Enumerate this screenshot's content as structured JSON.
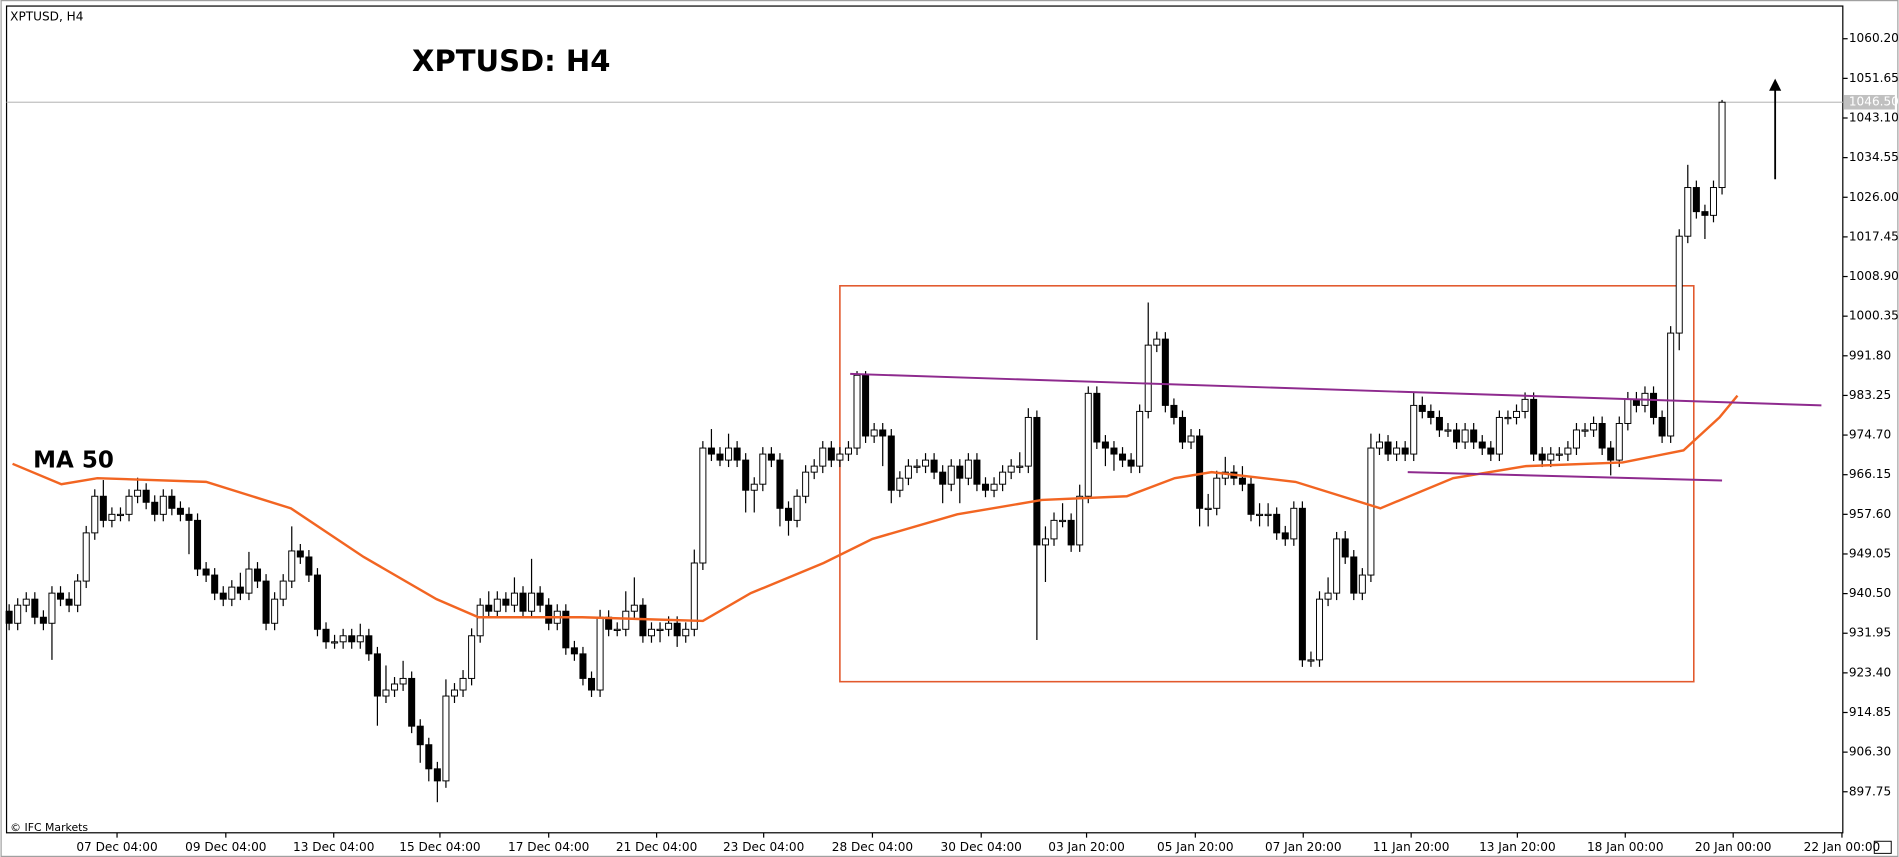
{
  "chart_data": {
    "type": "candlestick",
    "window_label": "XPTUSD, H4",
    "title": "XPTUSD: H4",
    "ma_label": "MA 50",
    "copyright": "© IFC Markets",
    "open": [
      936.7,
      934.1,
      938.0,
      939.3,
      935.4,
      934.1,
      940.6,
      939.3,
      938.0,
      943.2,
      953.6,
      961.5,
      956.3,
      957.6,
      957.6,
      961.5,
      962.8,
      960.2,
      957.6,
      961.5,
      958.9,
      957.6,
      956.3,
      945.8,
      944.5,
      940.6,
      939.3,
      941.9,
      940.6,
      945.8,
      943.2,
      934.1,
      939.3,
      943.2,
      949.7,
      948.4,
      944.5,
      932.8,
      930.1,
      930.1,
      931.4,
      930.1,
      931.4,
      927.5,
      918.4,
      919.7,
      921.0,
      922.2,
      911.9,
      907.9,
      902.7,
      900.1,
      918.4,
      919.7,
      922.2,
      931.4,
      938.0,
      936.7,
      939.3,
      938.0,
      940.6,
      936.7,
      940.6,
      938.0,
      934.1,
      936.7,
      928.8,
      927.5,
      922.2,
      919.7,
      935.4,
      932.8,
      932.8,
      936.7,
      938.0,
      931.4,
      932.8,
      932.8,
      934.1,
      931.4,
      932.8,
      947.1,
      971.9,
      970.6,
      969.3,
      971.9,
      969.3,
      962.8,
      964.1,
      970.6,
      969.3,
      958.9,
      956.3,
      961.5,
      966.7,
      968.0,
      971.9,
      969.3,
      970.6,
      971.9,
      987.6,
      974.5,
      975.8,
      974.5,
      962.8,
      965.4,
      968.0,
      968.0,
      969.3,
      966.7,
      964.1,
      968.0,
      965.4,
      969.3,
      964.1,
      962.8,
      964.1,
      966.7,
      968.0,
      968.0,
      978.5,
      951.0,
      952.3,
      956.3,
      956.3,
      951.0,
      961.5,
      983.7,
      973.2,
      971.9,
      970.6,
      969.3,
      968.0,
      979.8,
      994.1,
      995.4,
      981.1,
      978.5,
      973.2,
      974.5,
      958.9,
      958.9,
      965.4,
      966.7,
      965.4,
      964.1,
      957.6,
      957.6,
      957.6,
      953.6,
      952.3,
      958.9,
      926.2,
      926.2,
      939.3,
      940.6,
      952.3,
      948.4,
      940.6,
      944.5,
      971.9,
      973.2,
      970.6,
      971.9,
      970.6,
      981.1,
      979.8,
      978.5,
      975.8,
      975.8,
      973.2,
      975.8,
      973.2,
      971.9,
      970.6,
      978.5,
      978.5,
      979.8,
      982.4,
      970.6,
      969.3,
      970.6,
      970.6,
      971.9,
      975.8,
      975.8,
      977.2,
      971.9,
      969.3,
      977.2,
      982.4,
      981.1,
      983.7,
      978.5,
      974.5,
      996.7,
      1017.6,
      1028.1,
      1022.9,
      1022.1,
      1028.1
    ],
    "high": [
      938.2,
      939.5,
      940.8,
      940.8,
      936.9,
      942.1,
      942.1,
      940.8,
      944.7,
      955.1,
      963.0,
      965.0,
      959.1,
      959.1,
      963.0,
      965.5,
      964.3,
      961.7,
      963.0,
      963.0,
      960.4,
      959.1,
      957.8,
      947.3,
      946.0,
      942.1,
      943.4,
      945.0,
      949.5,
      947.3,
      944.7,
      940.8,
      944.7,
      955.0,
      951.2,
      949.9,
      946.0,
      934.3,
      931.6,
      932.9,
      932.9,
      934.0,
      932.9,
      929.0,
      925.0,
      922.5,
      926.0,
      923.7,
      913.4,
      909.4,
      904.2,
      922.0,
      921.2,
      924.0,
      933.0,
      939.5,
      941.0,
      941.0,
      940.8,
      944.0,
      942.1,
      948.0,
      942.1,
      939.5,
      938.2,
      938.2,
      930.3,
      929.0,
      923.7,
      937.0,
      936.9,
      934.3,
      941.0,
      944.0,
      939.5,
      934.3,
      934.3,
      935.6,
      935.6,
      934.3,
      950.0,
      973.4,
      976.0,
      972.1,
      975.0,
      973.4,
      970.8,
      965.6,
      972.1,
      972.1,
      970.8,
      960.4,
      963.0,
      968.2,
      969.5,
      973.4,
      973.4,
      972.1,
      973.4,
      988.5,
      988.5,
      977.3,
      977.3,
      976.0,
      966.9,
      969.5,
      969.5,
      970.8,
      970.8,
      968.2,
      969.5,
      969.5,
      970.8,
      970.8,
      965.6,
      965.6,
      968.2,
      969.5,
      971.0,
      980.5,
      980.0,
      955.0,
      958.0,
      960.0,
      957.8,
      964.0,
      985.2,
      985.2,
      974.7,
      973.4,
      972.1,
      970.8,
      981.3,
      1003.3,
      997.0,
      996.9,
      982.6,
      980.0,
      976.0,
      976.0,
      962.0,
      967.0,
      970.0,
      968.2,
      968.0,
      965.6,
      960.0,
      960.0,
      959.1,
      955.1,
      960.4,
      960.4,
      928.0,
      941.0,
      944.0,
      953.8,
      954.0,
      949.9,
      946.0,
      975.0,
      975.0,
      974.7,
      973.4,
      973.4,
      984.0,
      983.0,
      981.3,
      980.0,
      977.3,
      977.3,
      977.3,
      977.3,
      974.7,
      973.4,
      980.0,
      980.0,
      981.3,
      983.9,
      983.9,
      972.1,
      972.1,
      972.1,
      973.4,
      977.3,
      977.3,
      978.7,
      978.7,
      973.4,
      978.7,
      984.0,
      984.0,
      985.2,
      985.2,
      980.0,
      998.2,
      1019.1,
      1033.0,
      1029.6,
      1024.4,
      1029.6,
      1047.0
    ],
    "low": [
      932.6,
      932.6,
      936.5,
      933.9,
      932.6,
      926.2,
      937.8,
      936.5,
      936.5,
      941.7,
      952.1,
      954.8,
      954.8,
      956.1,
      956.1,
      960.0,
      958.7,
      956.1,
      956.1,
      957.4,
      956.1,
      949.0,
      944.3,
      943.0,
      939.1,
      937.8,
      937.8,
      939.1,
      939.1,
      941.7,
      932.6,
      932.6,
      937.8,
      941.7,
      946.9,
      943.0,
      931.3,
      928.6,
      928.6,
      928.6,
      928.6,
      928.6,
      926.0,
      912.0,
      916.9,
      918.2,
      919.5,
      910.4,
      904.0,
      900.0,
      895.5,
      898.6,
      916.9,
      918.2,
      920.7,
      929.9,
      935.2,
      935.2,
      936.5,
      936.5,
      935.2,
      935.2,
      936.5,
      932.6,
      932.6,
      927.3,
      926.0,
      920.7,
      918.2,
      918.2,
      931.3,
      931.3,
      931.3,
      935.2,
      929.9,
      929.9,
      930.0,
      931.3,
      929.0,
      929.9,
      931.3,
      945.6,
      969.1,
      968.0,
      967.8,
      967.8,
      958.0,
      958.0,
      962.6,
      967.8,
      955.0,
      953.0,
      954.8,
      960.0,
      965.2,
      966.5,
      967.8,
      967.8,
      969.1,
      970.4,
      973.0,
      973.0,
      968.0,
      960.0,
      961.3,
      963.9,
      966.5,
      966.5,
      965.2,
      960.0,
      962.6,
      960.0,
      963.9,
      962.6,
      961.3,
      961.3,
      962.6,
      965.2,
      966.5,
      966.5,
      930.5,
      943.0,
      950.8,
      954.8,
      949.5,
      949.5,
      960.0,
      971.7,
      968.0,
      967.0,
      967.8,
      966.5,
      966.5,
      978.3,
      992.6,
      979.6,
      977.0,
      971.7,
      971.7,
      955.0,
      955.0,
      957.4,
      963.9,
      963.9,
      962.6,
      956.1,
      955.0,
      955.0,
      952.1,
      950.8,
      950.8,
      924.7,
      924.7,
      924.7,
      937.8,
      939.1,
      946.9,
      939.1,
      939.1,
      943.0,
      970.4,
      969.1,
      969.1,
      969.1,
      969.1,
      978.3,
      977.0,
      974.3,
      974.3,
      971.7,
      971.7,
      971.7,
      970.4,
      969.1,
      969.1,
      977.0,
      977.0,
      978.3,
      969.1,
      967.8,
      967.8,
      969.1,
      969.1,
      970.4,
      974.3,
      974.3,
      970.4,
      966.0,
      967.8,
      975.7,
      979.6,
      979.6,
      977.0,
      973.0,
      973.0,
      993.0,
      1016.1,
      1021.4,
      1017.0,
      1020.6,
      1026.6
    ],
    "close": [
      934.1,
      938.0,
      939.3,
      935.4,
      934.1,
      940.6,
      939.3,
      938.0,
      943.2,
      953.6,
      961.5,
      956.3,
      957.6,
      957.6,
      961.5,
      962.8,
      960.2,
      957.6,
      961.5,
      958.9,
      957.6,
      956.3,
      945.8,
      944.5,
      940.6,
      939.3,
      941.9,
      940.6,
      945.8,
      943.2,
      934.1,
      939.3,
      943.2,
      949.7,
      948.4,
      944.5,
      932.8,
      930.1,
      930.1,
      931.4,
      930.1,
      931.4,
      927.5,
      918.4,
      919.7,
      921.0,
      922.2,
      911.9,
      907.9,
      902.7,
      900.1,
      918.4,
      919.7,
      922.2,
      931.4,
      938.0,
      936.7,
      939.3,
      938.0,
      940.6,
      936.7,
      940.6,
      938.0,
      934.1,
      936.7,
      928.8,
      927.5,
      922.2,
      919.7,
      935.4,
      932.8,
      932.8,
      936.7,
      938.0,
      931.4,
      932.8,
      932.8,
      934.1,
      931.4,
      932.8,
      947.1,
      971.9,
      970.6,
      969.3,
      971.9,
      969.3,
      962.8,
      964.1,
      970.6,
      969.3,
      958.9,
      956.3,
      961.5,
      966.7,
      968.0,
      971.9,
      969.3,
      970.6,
      971.9,
      987.6,
      974.5,
      975.8,
      974.5,
      962.8,
      965.4,
      968.0,
      968.0,
      969.3,
      966.7,
      964.1,
      968.0,
      965.4,
      969.3,
      964.1,
      962.8,
      964.1,
      966.7,
      968.0,
      968.0,
      978.5,
      951.0,
      952.3,
      956.3,
      956.3,
      951.0,
      961.5,
      983.7,
      973.2,
      971.9,
      970.6,
      969.3,
      968.0,
      979.8,
      994.1,
      995.4,
      981.1,
      978.5,
      973.2,
      974.5,
      958.9,
      958.9,
      965.4,
      966.7,
      965.4,
      964.1,
      957.6,
      957.6,
      957.6,
      953.6,
      952.3,
      958.9,
      926.2,
      926.2,
      939.3,
      940.6,
      952.3,
      948.4,
      940.6,
      944.5,
      971.9,
      973.2,
      970.6,
      971.9,
      970.6,
      981.1,
      979.8,
      978.5,
      975.8,
      975.8,
      973.2,
      975.8,
      973.2,
      971.9,
      970.6,
      978.5,
      978.5,
      979.8,
      982.4,
      970.6,
      969.3,
      970.6,
      970.6,
      971.9,
      975.8,
      975.8,
      977.2,
      971.9,
      969.3,
      977.2,
      982.4,
      981.1,
      983.7,
      978.5,
      974.5,
      996.7,
      1017.6,
      1028.1,
      1022.9,
      1022.1,
      1028.1,
      1046.5
    ],
    "up_color": "#ffffff",
    "down_color": "#000000",
    "outline_color": "#000000",
    "ma": {
      "color": "#f26522",
      "x": [
        0.4,
        6.1,
        10.3,
        23.0,
        32.9,
        41.4,
        49.9,
        54.8,
        66.9,
        81.0,
        86.6,
        95.1,
        100.8,
        110.7,
        120.6,
        130.5,
        136.1,
        140.4,
        150.2,
        160.1,
        168.6,
        177.1,
        188.4,
        195.5,
        199.7,
        201.8
      ],
      "values": [
        968.5,
        964.1,
        965.4,
        964.6,
        958.9,
        948.4,
        939.3,
        935.4,
        935.4,
        934.6,
        940.6,
        947.1,
        952.3,
        957.6,
        960.7,
        961.5,
        965.4,
        966.7,
        964.6,
        958.9,
        965.4,
        968.0,
        968.8,
        971.4,
        978.5,
        983.2
      ]
    },
    "box": {
      "color": "#e2592d",
      "x": [
        97.0,
        196.7
      ],
      "y": [
        921.5,
        1006.9
      ]
    },
    "trendlines": [
      {
        "color": "#8e2a8e",
        "x": [
          98.2,
          211.6
        ],
        "y": [
          987.9,
          981.1
        ]
      },
      {
        "color": "#8e2a8e",
        "x": [
          163.3,
          200.0
        ],
        "y": [
          966.7,
          964.9
        ]
      }
    ],
    "arrow": {
      "color": "#000000",
      "x": 206.2,
      "y": [
        1029.9,
        1051.6
      ]
    },
    "last_price": {
      "value": 1046.5,
      "label": "1046.50"
    },
    "xlim": [
      -0.3,
      214.1
    ],
    "ylim": [
      888.9,
      1067.25
    ],
    "xticks": [
      {
        "value": 12.6,
        "label": "07 Dec 04:00"
      },
      {
        "value": 25.3,
        "label": "09 Dec 04:00"
      },
      {
        "value": 37.9,
        "label": "13 Dec 04:00"
      },
      {
        "value": 50.3,
        "label": "15 Dec 04:00"
      },
      {
        "value": 63.0,
        "label": "17 Dec 04:00"
      },
      {
        "value": 75.6,
        "label": "21 Dec 04:00"
      },
      {
        "value": 88.1,
        "label": "23 Dec 04:00"
      },
      {
        "value": 100.8,
        "label": "28 Dec 04:00"
      },
      {
        "value": 113.5,
        "label": "30 Dec 04:00"
      },
      {
        "value": 125.8,
        "label": "03 Jan 20:00"
      },
      {
        "value": 138.5,
        "label": "05 Jan 20:00"
      },
      {
        "value": 151.1,
        "label": "07 Jan 20:00"
      },
      {
        "value": 163.7,
        "label": "11 Jan 20:00"
      },
      {
        "value": 176.1,
        "label": "13 Jan 20:00"
      },
      {
        "value": 188.7,
        "label": "18 Jan 00:00"
      },
      {
        "value": 201.3,
        "label": "20 Jan 00:00"
      },
      {
        "value": 214.0,
        "label": "22 Jan 00:00"
      }
    ],
    "yticks": [
      {
        "value": 1060.2,
        "label": "1060.20"
      },
      {
        "value": 1051.65,
        "label": "1051.65"
      },
      {
        "value": 1043.1,
        "label": "1043.10"
      },
      {
        "value": 1034.55,
        "label": "1034.55"
      },
      {
        "value": 1026.0,
        "label": "1026.00"
      },
      {
        "value": 1017.45,
        "label": "1017.45"
      },
      {
        "value": 1008.9,
        "label": "1008.90"
      },
      {
        "value": 1000.35,
        "label": "1000.35"
      },
      {
        "value": 991.8,
        "label": "991.80"
      },
      {
        "value": 983.25,
        "label": "983.25"
      },
      {
        "value": 974.7,
        "label": "974.70"
      },
      {
        "value": 966.15,
        "label": "966.15"
      },
      {
        "value": 957.6,
        "label": "957.60"
      },
      {
        "value": 949.05,
        "label": "949.05"
      },
      {
        "value": 940.5,
        "label": "940.50"
      },
      {
        "value": 931.95,
        "label": "931.95"
      },
      {
        "value": 923.4,
        "label": "923.40"
      },
      {
        "value": 914.85,
        "label": "914.85"
      },
      {
        "value": 906.3,
        "label": "906.30"
      },
      {
        "value": 897.75,
        "label": "897.75"
      }
    ],
    "grid": false
  }
}
